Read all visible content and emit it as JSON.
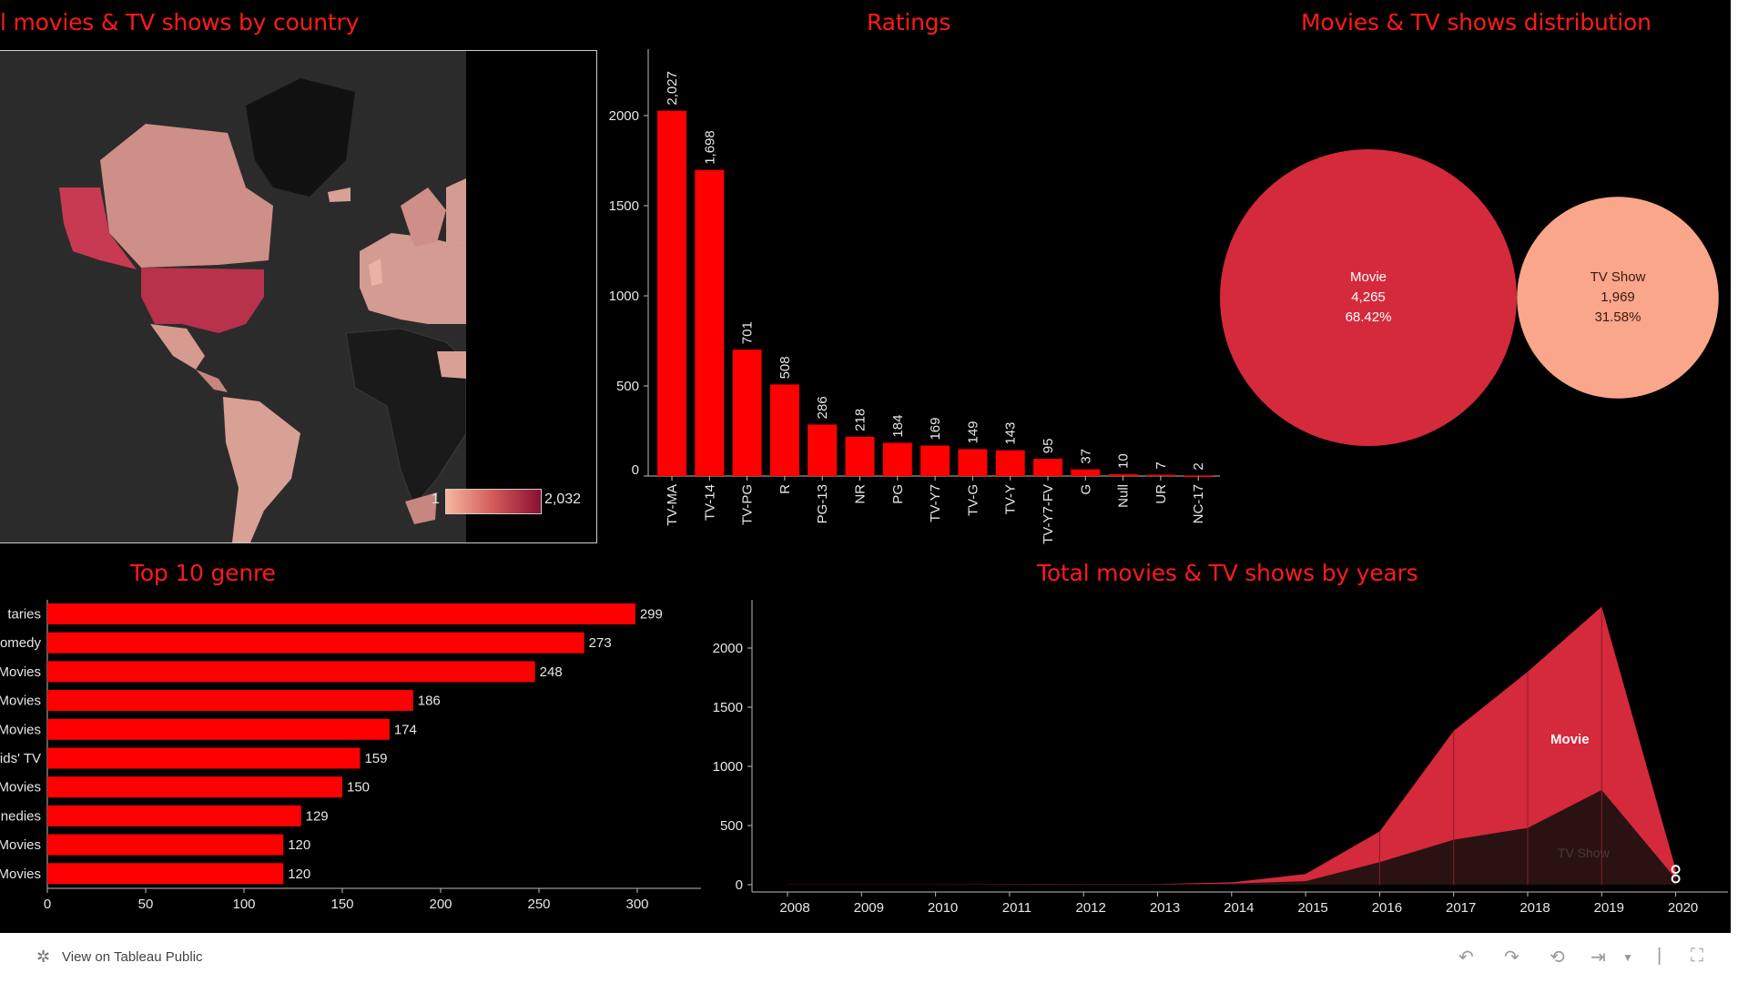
{
  "titles": {
    "map": "l movies & TV shows by country",
    "ratings": "Ratings",
    "distribution": "Movies & TV shows distribution",
    "genre": "Top 10 genre",
    "years": "Total movies & TV shows by years"
  },
  "map_legend": {
    "min": "1",
    "max": "2,032"
  },
  "footer": {
    "view_label": "View on Tableau Public",
    "icons": [
      "tableau-logo-icon",
      "undo-icon",
      "redo-icon",
      "revert-icon",
      "share-icon",
      "chevron-down-icon",
      "fullscreen-icon"
    ]
  },
  "colors": {
    "background": "#000000",
    "title": "#ff1a1a",
    "bar": "#ff0000",
    "movie": "#d42a3c",
    "tvshow": "#f9a68a",
    "area_tv": "#2a1212"
  },
  "chart_data": [
    {
      "type": "bar",
      "title": "Ratings",
      "categories": [
        "TV-MA",
        "TV-14",
        "TV-PG",
        "R",
        "PG-13",
        "NR",
        "PG",
        "TV-Y7",
        "TV-G",
        "TV-Y",
        "TV-Y7-FV",
        "G",
        "Null",
        "UR",
        "NC-17"
      ],
      "values": [
        2027,
        1698,
        701,
        508,
        286,
        218,
        184,
        169,
        149,
        143,
        95,
        37,
        10,
        7,
        2
      ],
      "data_labels": [
        "2,027",
        "1,698",
        "701",
        "508",
        "286",
        "218",
        "184",
        "169",
        "149",
        "143",
        "95",
        "37",
        "10",
        "7",
        "2"
      ],
      "yticks": [
        0,
        500,
        1000,
        1500,
        2000
      ],
      "ylim": [
        0,
        2400
      ]
    },
    {
      "type": "pie",
      "title": "Movies & TV shows distribution",
      "slices": [
        {
          "name": "Movie",
          "value": 4265,
          "label": "4,265",
          "percent": "68.42%"
        },
        {
          "name": "TV Show",
          "value": 1969,
          "label": "1,969",
          "percent": "31.58%"
        }
      ]
    },
    {
      "type": "bar",
      "title": "Top 10 genre",
      "orientation": "horizontal",
      "categories": [
        "taries",
        "omedy",
        "Movies",
        "Movies",
        "Movies",
        "ids' TV",
        "Movies",
        "nedies",
        "Movies",
        "Movies"
      ],
      "values": [
        299,
        273,
        248,
        186,
        174,
        159,
        150,
        129,
        120,
        120
      ],
      "xticks": [
        0,
        50,
        100,
        150,
        200,
        250,
        300
      ],
      "xlim": [
        0,
        330
      ]
    },
    {
      "type": "area",
      "title": "Total movies & TV shows by years",
      "x": [
        "2008",
        "2009",
        "2010",
        "2011",
        "2012",
        "2013",
        "2014",
        "2015",
        "2016",
        "2017",
        "2018",
        "2019",
        "2020"
      ],
      "series": [
        {
          "name": "Movie",
          "values": [
            2,
            2,
            2,
            3,
            4,
            6,
            20,
            90,
            450,
            1300,
            1800,
            2350,
            130
          ]
        },
        {
          "name": "TV Show",
          "values": [
            1,
            1,
            1,
            1,
            2,
            4,
            10,
            30,
            190,
            380,
            480,
            800,
            50
          ]
        }
      ],
      "yticks": [
        0,
        500,
        1000,
        1500,
        2000
      ],
      "ylim": [
        0,
        2450
      ]
    }
  ]
}
